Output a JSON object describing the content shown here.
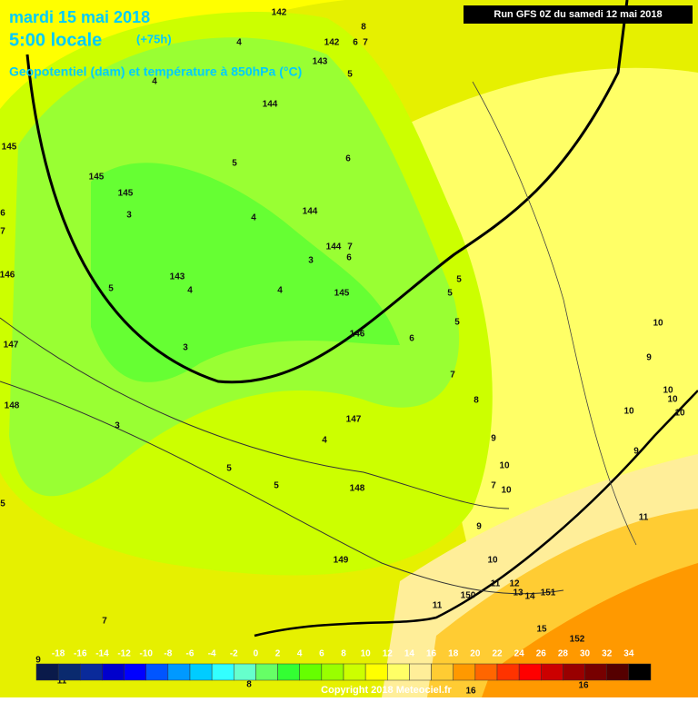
{
  "header": {
    "date": "mardi 15 mai 2018",
    "time": "5:00 locale",
    "lead": "(+75h)",
    "subtitle": "Geopotentiel (dam) et température à 850hPa (°C)",
    "run": "Run GFS 0Z du samedi 12 mai 2018"
  },
  "scale": {
    "labels": [
      -18,
      -16,
      -14,
      -12,
      -10,
      -8,
      -6,
      -4,
      -2,
      0,
      2,
      4,
      6,
      8,
      10,
      12,
      14,
      16,
      18,
      20,
      22,
      24,
      26,
      28,
      30,
      32,
      34
    ],
    "colors": [
      "#0a1a4a",
      "#0a2a6e",
      "#0a2a9a",
      "#0000cc",
      "#0000ff",
      "#0055ff",
      "#0099ff",
      "#00ccff",
      "#33ffff",
      "#66ffcc",
      "#66ff66",
      "#33ff33",
      "#66ff00",
      "#99ff00",
      "#ccff00",
      "#ffff00",
      "#ffff66",
      "#ffee99",
      "#ffcc33",
      "#ff9900",
      "#ff6600",
      "#ff3300",
      "#ff0000",
      "#cc0000",
      "#990000",
      "#770000",
      "#550000",
      "#000000"
    ]
  },
  "map_labels": [
    "142",
    "8",
    "142",
    "6",
    "7",
    "4",
    "143",
    "5",
    "4",
    "144",
    "145",
    "145",
    "145",
    "5",
    "6",
    "3",
    "4",
    "144",
    "6",
    "7",
    "144",
    "7",
    "6",
    "3",
    "146",
    "143",
    "5",
    "4",
    "4",
    "145",
    "5",
    "5",
    "5",
    "146",
    "6",
    "147",
    "3",
    "7",
    "148",
    "8",
    "10",
    "9",
    "10",
    "10",
    "10",
    "10",
    "147",
    "3",
    "4",
    "9",
    "9",
    "5",
    "10",
    "7",
    "10",
    "5",
    "148",
    "5",
    "11",
    "9",
    "10",
    "149",
    "11",
    "12",
    "13",
    "14",
    "151",
    "150",
    "11",
    "7",
    "15",
    "152",
    "9",
    "11",
    "8",
    "16",
    "16"
  ],
  "copyright": "Copyright 2018 Meteociel.fr"
}
